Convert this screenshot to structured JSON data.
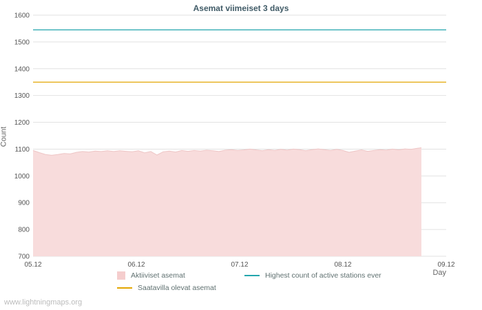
{
  "watermark": "www.lightningmaps.org",
  "chart_data": {
    "type": "area",
    "title": "Asemat viimeiset 3 days",
    "xlabel": "Day",
    "ylabel": "Count",
    "ylim": [
      700,
      1600
    ],
    "ytick_step": 100,
    "x_range": [
      0,
      4
    ],
    "x_ticks": [
      {
        "pos": 0,
        "label": "05.12"
      },
      {
        "pos": 1,
        "label": "06.12"
      },
      {
        "pos": 2,
        "label": "07.12"
      },
      {
        "pos": 3,
        "label": "08.12"
      },
      {
        "pos": 4,
        "label": "09.12"
      }
    ],
    "grid_color": "#e2e2e2",
    "tick_text_color": "#555555",
    "series": [
      {
        "name": "Aktiiviset asemat",
        "type": "area",
        "fill": "#f8dcdc",
        "stroke": "#eec6c6",
        "points": [
          [
            0,
            1095
          ],
          [
            0.06,
            1087
          ],
          [
            0.12,
            1080
          ],
          [
            0.18,
            1077
          ],
          [
            0.24,
            1080
          ],
          [
            0.3,
            1084
          ],
          [
            0.36,
            1082
          ],
          [
            0.42,
            1088
          ],
          [
            0.48,
            1091
          ],
          [
            0.54,
            1089
          ],
          [
            0.6,
            1093
          ],
          [
            0.66,
            1091
          ],
          [
            0.72,
            1094
          ],
          [
            0.78,
            1091
          ],
          [
            0.84,
            1094
          ],
          [
            0.9,
            1092
          ],
          [
            0.96,
            1090
          ],
          [
            1.02,
            1094
          ],
          [
            1.08,
            1086
          ],
          [
            1.14,
            1091
          ],
          [
            1.2,
            1078
          ],
          [
            1.26,
            1090
          ],
          [
            1.32,
            1093
          ],
          [
            1.38,
            1089
          ],
          [
            1.44,
            1095
          ],
          [
            1.5,
            1092
          ],
          [
            1.56,
            1095
          ],
          [
            1.62,
            1093
          ],
          [
            1.68,
            1096
          ],
          [
            1.74,
            1094
          ],
          [
            1.8,
            1091
          ],
          [
            1.86,
            1096
          ],
          [
            1.92,
            1098
          ],
          [
            1.98,
            1095
          ],
          [
            2.04,
            1097
          ],
          [
            2.1,
            1100
          ],
          [
            2.16,
            1097
          ],
          [
            2.22,
            1094
          ],
          [
            2.28,
            1098
          ],
          [
            2.34,
            1095
          ],
          [
            2.4,
            1099
          ],
          [
            2.46,
            1096
          ],
          [
            2.52,
            1100
          ],
          [
            2.58,
            1098
          ],
          [
            2.64,
            1094
          ],
          [
            2.7,
            1098
          ],
          [
            2.76,
            1101
          ],
          [
            2.82,
            1098
          ],
          [
            2.88,
            1095
          ],
          [
            2.94,
            1099
          ],
          [
            3.0,
            1095
          ],
          [
            3.06,
            1088
          ],
          [
            3.12,
            1093
          ],
          [
            3.18,
            1097
          ],
          [
            3.24,
            1092
          ],
          [
            3.3,
            1095
          ],
          [
            3.36,
            1098
          ],
          [
            3.42,
            1096
          ],
          [
            3.48,
            1100
          ],
          [
            3.54,
            1097
          ],
          [
            3.6,
            1101
          ],
          [
            3.66,
            1099
          ],
          [
            3.72,
            1103
          ],
          [
            3.76,
            1105
          ]
        ]
      },
      {
        "name": "Saatavilla olevat asemat",
        "type": "hline",
        "value": 1350,
        "color": "#e3a600"
      },
      {
        "name": "Highest count of active stations ever",
        "type": "hline",
        "value": 1545,
        "color": "#22a6ad"
      }
    ],
    "legend": [
      {
        "series": "Aktiiviset asemat",
        "swatch": "area",
        "color": "#f5cdcd"
      },
      {
        "series": "Highest count of active stations ever",
        "swatch": "line",
        "color": "#22a6ad"
      },
      {
        "series": "Saatavilla olevat asemat",
        "swatch": "line",
        "color": "#e3a600"
      }
    ],
    "legend_position": "bottom"
  }
}
